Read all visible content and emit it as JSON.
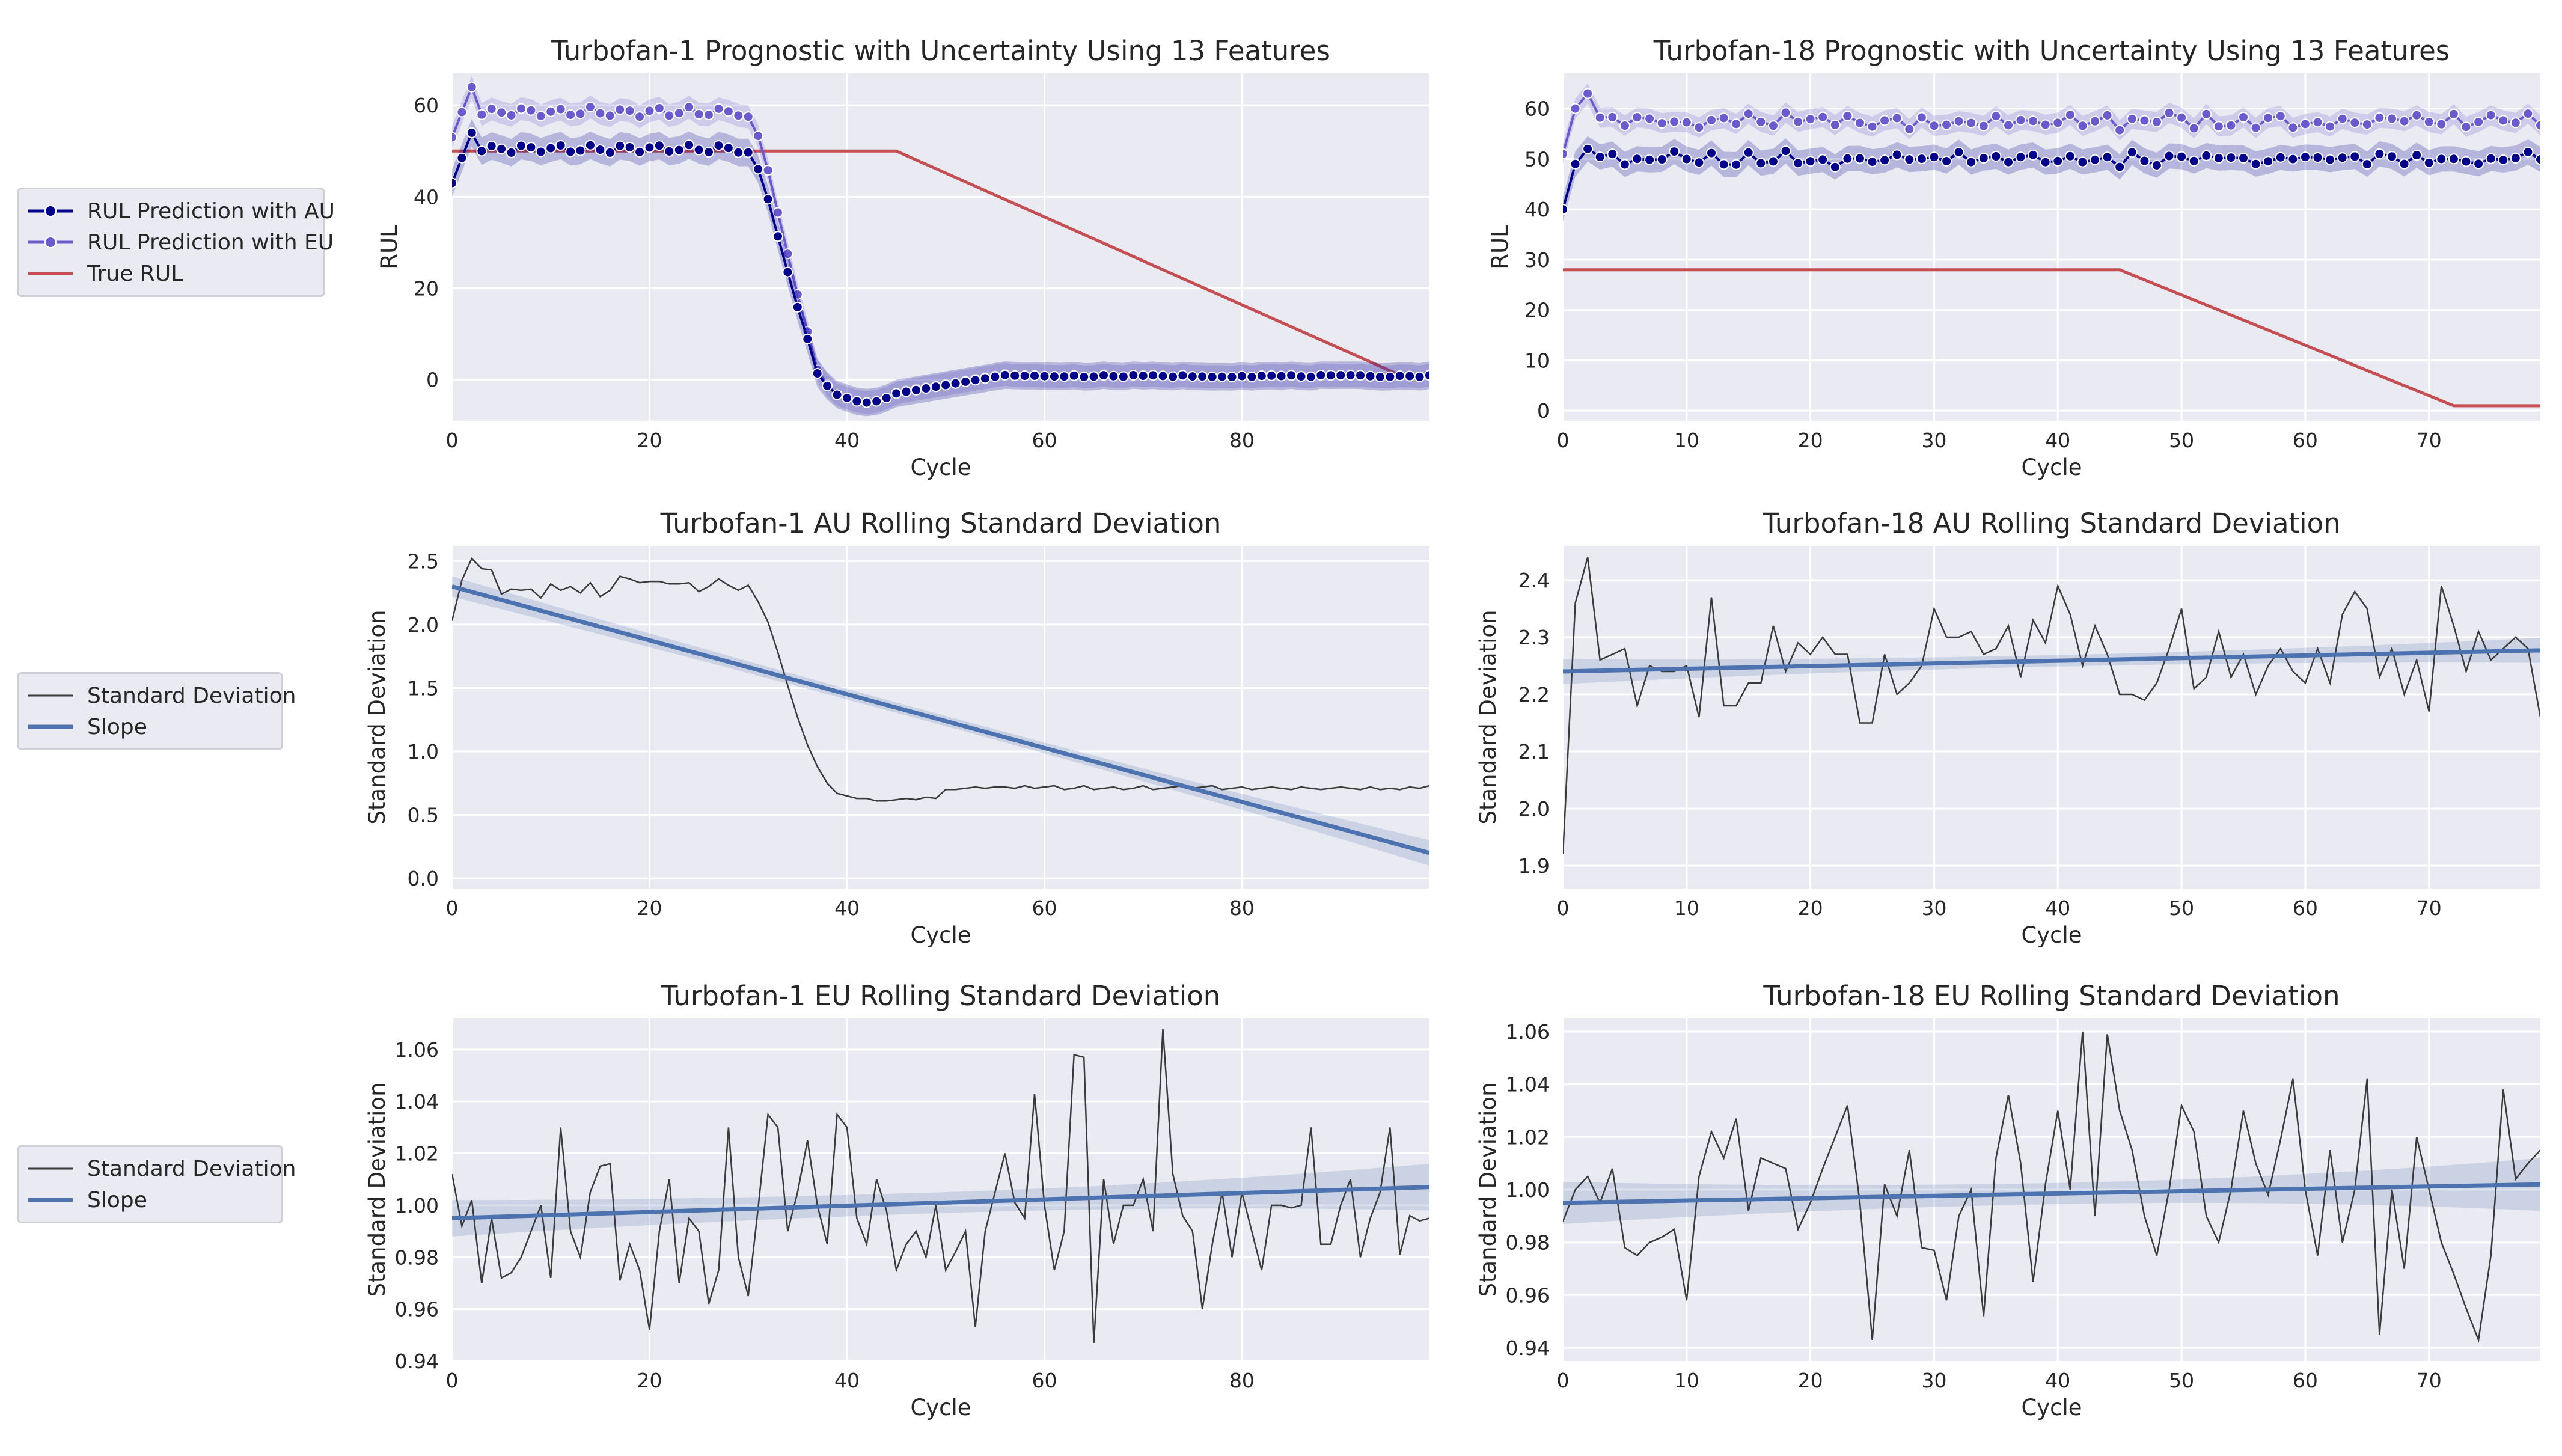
{
  "figure": {
    "legends": [
      {
        "entries": [
          {
            "label": "RUL Prediction with AU",
            "color": "#00008b",
            "marker": "dot-line"
          },
          {
            "label": "RUL Prediction with EU",
            "color": "#6a5acd",
            "marker": "dot-line"
          },
          {
            "label": "True RUL",
            "color": "#c44e52",
            "marker": "line"
          }
        ]
      },
      {
        "entries": [
          {
            "label": "Standard Deviation",
            "color": "#3a3a3a",
            "marker": "thin-line"
          },
          {
            "label": "Slope",
            "color": "#4c72b0",
            "marker": "thick-line"
          }
        ]
      },
      {
        "entries": [
          {
            "label": "Standard Deviation",
            "color": "#3a3a3a",
            "marker": "thin-line"
          },
          {
            "label": "Slope",
            "color": "#4c72b0",
            "marker": "thick-line"
          }
        ]
      }
    ]
  },
  "chart_data": [
    {
      "id": "rul1",
      "type": "line",
      "title": "Turbofan-1 Prognostic with Uncertainty Using 13 Features",
      "xlabel": "Cycle",
      "ylabel": "RUL",
      "xlim": [
        0,
        99
      ],
      "ylim": [
        -9,
        67
      ],
      "xticks": [
        0,
        20,
        40,
        60,
        80
      ],
      "yticks": [
        0,
        20,
        40,
        60
      ],
      "n": 100,
      "series": [
        {
          "name": "True RUL",
          "kind": "true_rul",
          "plateau": 50,
          "knee": 45,
          "end": 96,
          "floor": 1,
          "color": "#c44e52"
        },
        {
          "name": "RUL Prediction with EU",
          "kind": "pred_turbo1",
          "base": 58.5,
          "amp": 1.2,
          "start": 53,
          "peak": 64,
          "band": 2.5,
          "color": "#6a5acd"
        },
        {
          "name": "RUL Prediction with AU",
          "kind": "pred_turbo1",
          "base": 50.5,
          "amp": 1.0,
          "start": 43,
          "peak": 54,
          "band": 3.0,
          "color": "#00008b"
        }
      ]
    },
    {
      "id": "rul18",
      "type": "line",
      "title": "Turbofan-18 Prognostic with Uncertainty Using 13 Features",
      "xlabel": "Cycle",
      "ylabel": "RUL",
      "xlim": [
        0,
        79
      ],
      "ylim": [
        -2,
        67
      ],
      "xticks": [
        0,
        10,
        20,
        30,
        40,
        50,
        60,
        70
      ],
      "yticks": [
        0,
        10,
        20,
        30,
        40,
        50,
        60
      ],
      "n": 80,
      "series": [
        {
          "name": "True RUL",
          "kind": "true_rul",
          "plateau": 28,
          "knee": 45,
          "end": 72,
          "floor": 1,
          "color": "#c44e52"
        },
        {
          "name": "RUL Prediction with EU",
          "kind": "pred_flat",
          "base": 57.5,
          "amp": 1.3,
          "start": 51,
          "peak": 63,
          "band": 2.0,
          "color": "#6a5acd"
        },
        {
          "name": "RUL Prediction with AU",
          "kind": "pred_flat",
          "base": 50.0,
          "amp": 1.2,
          "start": 40,
          "peak": 52,
          "band": 2.5,
          "color": "#00008b"
        }
      ]
    },
    {
      "id": "au1",
      "type": "line",
      "title": "Turbofan-1 AU Rolling Standard Deviation",
      "xlabel": "Cycle",
      "ylabel": "Standard Deviation",
      "xlim": [
        0,
        99
      ],
      "ylim": [
        -0.08,
        2.62
      ],
      "xticks": [
        0,
        20,
        40,
        60,
        80
      ],
      "yticks": [
        0.0,
        0.5,
        1.0,
        1.5,
        2.0,
        2.5
      ],
      "ytick_labels": [
        "0.0",
        "0.5",
        "1.0",
        "1.5",
        "2.0",
        "2.5"
      ],
      "std": [
        2.03,
        2.35,
        2.52,
        2.44,
        2.43,
        2.24,
        2.28,
        2.27,
        2.28,
        2.21,
        2.32,
        2.27,
        2.3,
        2.25,
        2.33,
        2.22,
        2.27,
        2.38,
        2.36,
        2.33,
        2.34,
        2.34,
        2.32,
        2.32,
        2.33,
        2.26,
        2.3,
        2.36,
        2.31,
        2.27,
        2.31,
        2.18,
        2.02,
        1.78,
        1.52,
        1.27,
        1.05,
        0.88,
        0.75,
        0.67,
        0.65,
        0.63,
        0.63,
        0.61,
        0.61,
        0.62,
        0.63,
        0.62,
        0.64,
        0.63,
        0.7,
        0.7,
        0.71,
        0.72,
        0.71,
        0.72,
        0.72,
        0.71,
        0.73,
        0.71,
        0.72,
        0.73,
        0.7,
        0.71,
        0.73,
        0.7,
        0.71,
        0.72,
        0.7,
        0.71,
        0.73,
        0.7,
        0.71,
        0.72,
        0.73,
        0.71,
        0.72,
        0.73,
        0.7,
        0.71,
        0.72,
        0.7,
        0.71,
        0.72,
        0.71,
        0.7,
        0.72,
        0.71,
        0.7,
        0.71,
        0.72,
        0.71,
        0.7,
        0.72,
        0.7,
        0.71,
        0.7,
        0.72,
        0.71,
        0.73
      ],
      "slope": {
        "y0": 2.3,
        "y1": 0.2,
        "band0": 0.08,
        "band1": 0.1,
        "bandmid": 0.04
      }
    },
    {
      "id": "au18",
      "type": "line",
      "title": "Turbofan-18 AU Rolling Standard Deviation",
      "xlabel": "Cycle",
      "ylabel": "Standard Deviation",
      "xlim": [
        0,
        79
      ],
      "ylim": [
        1.86,
        2.46
      ],
      "xticks": [
        0,
        10,
        20,
        30,
        40,
        50,
        60,
        70
      ],
      "yticks": [
        1.9,
        2.0,
        2.1,
        2.2,
        2.3,
        2.4
      ],
      "ytick_labels": [
        "1.9",
        "2.0",
        "2.1",
        "2.2",
        "2.3",
        "2.4"
      ],
      "std": [
        1.92,
        2.36,
        2.44,
        2.26,
        2.27,
        2.28,
        2.18,
        2.25,
        2.24,
        2.24,
        2.25,
        2.16,
        2.37,
        2.18,
        2.18,
        2.22,
        2.22,
        2.32,
        2.24,
        2.29,
        2.27,
        2.3,
        2.27,
        2.27,
        2.15,
        2.15,
        2.27,
        2.2,
        2.22,
        2.25,
        2.35,
        2.3,
        2.3,
        2.31,
        2.27,
        2.28,
        2.32,
        2.23,
        2.33,
        2.29,
        2.39,
        2.34,
        2.25,
        2.32,
        2.27,
        2.2,
        2.2,
        2.19,
        2.22,
        2.28,
        2.35,
        2.21,
        2.23,
        2.31,
        2.23,
        2.27,
        2.2,
        2.25,
        2.28,
        2.24,
        2.22,
        2.28,
        2.22,
        2.34,
        2.38,
        2.35,
        2.23,
        2.28,
        2.2,
        2.26,
        2.17,
        2.39,
        2.32,
        2.24,
        2.31,
        2.26,
        2.28,
        2.3,
        2.28,
        2.16
      ],
      "slope": {
        "y0": 2.24,
        "y1": 2.277,
        "band0": 0.022,
        "band1": 0.022,
        "bandmid": 0.01
      }
    },
    {
      "id": "eu1",
      "type": "line",
      "title": "Turbofan-1 EU Rolling Standard Deviation",
      "xlabel": "Cycle",
      "ylabel": "Standard Deviation",
      "xlim": [
        0,
        99
      ],
      "ylim": [
        0.94,
        1.072
      ],
      "xticks": [
        0,
        20,
        40,
        60,
        80
      ],
      "yticks": [
        0.94,
        0.96,
        0.98,
        1.0,
        1.02,
        1.04,
        1.06
      ],
      "ytick_labels": [
        "0.94",
        "0.96",
        "0.98",
        "1.00",
        "1.02",
        "1.04",
        "1.06"
      ],
      "std": [
        1.012,
        0.992,
        1.002,
        0.97,
        0.995,
        0.972,
        0.974,
        0.98,
        0.99,
        1.0,
        0.972,
        1.03,
        0.99,
        0.98,
        1.005,
        1.015,
        1.016,
        0.971,
        0.985,
        0.975,
        0.952,
        0.99,
        1.01,
        0.97,
        0.995,
        0.99,
        0.962,
        0.975,
        1.03,
        0.98,
        0.965,
        0.999,
        1.035,
        1.03,
        0.99,
        1.005,
        1.025,
        1.0,
        0.985,
        1.035,
        1.03,
        0.995,
        0.985,
        1.01,
        0.998,
        0.975,
        0.985,
        0.99,
        0.98,
        1.0,
        0.975,
        0.982,
        0.99,
        0.953,
        0.99,
        1.005,
        1.02,
        1.001,
        0.995,
        1.043,
        1.0,
        0.975,
        0.99,
        1.058,
        1.057,
        0.947,
        1.01,
        0.985,
        1.0,
        1.0,
        1.01,
        0.99,
        1.068,
        1.012,
        0.996,
        0.99,
        0.96,
        0.985,
        1.005,
        0.98,
        1.005,
        0.99,
        0.975,
        1.0,
        1.0,
        0.999,
        1.0,
        1.03,
        0.985,
        0.985,
        1.0,
        1.01,
        0.98,
        0.995,
        1.005,
        1.03,
        0.981,
        0.996,
        0.994,
        0.995
      ],
      "slope": {
        "y0": 0.995,
        "y1": 1.007,
        "band0": 0.007,
        "band1": 0.009,
        "bandmid": 0.004
      }
    },
    {
      "id": "eu18",
      "type": "line",
      "title": "Turbofan-18 EU Rolling Standard Deviation",
      "xlabel": "Cycle",
      "ylabel": "Standard Deviation",
      "xlim": [
        0,
        79
      ],
      "ylim": [
        0.935,
        1.065
      ],
      "xticks": [
        0,
        10,
        20,
        30,
        40,
        50,
        60,
        70
      ],
      "yticks": [
        0.94,
        0.96,
        0.98,
        1.0,
        1.02,
        1.04,
        1.06
      ],
      "ytick_labels": [
        "0.94",
        "0.96",
        "0.98",
        "1.00",
        "1.02",
        "1.04",
        "1.06"
      ],
      "std": [
        0.988,
        1.0,
        1.005,
        0.995,
        1.008,
        0.978,
        0.975,
        0.98,
        0.982,
        0.985,
        0.958,
        1.005,
        1.022,
        1.012,
        1.027,
        0.992,
        1.012,
        1.01,
        1.008,
        0.985,
        0.995,
        1.008,
        1.02,
        1.032,
        0.995,
        0.943,
        1.002,
        0.99,
        1.015,
        0.978,
        0.977,
        0.958,
        0.99,
        1.0,
        0.952,
        1.012,
        1.036,
        1.01,
        0.965,
        1.002,
        1.03,
        1.0,
        1.06,
        0.99,
        1.059,
        1.03,
        1.015,
        0.99,
        0.975,
        1.0,
        1.032,
        1.022,
        0.99,
        0.98,
        1.0,
        1.03,
        1.01,
        0.998,
        1.019,
        1.042,
        1.0,
        0.975,
        1.015,
        0.98,
        1.0,
        1.042,
        0.945,
        1.0,
        0.97,
        1.02,
        1.0,
        0.98,
        0.968,
        0.955,
        0.943,
        0.975,
        1.038,
        1.004,
        1.01,
        1.015
      ],
      "slope": {
        "y0": 0.995,
        "y1": 1.002,
        "band0": 0.008,
        "band1": 0.01,
        "bandmid": 0.004
      }
    }
  ]
}
